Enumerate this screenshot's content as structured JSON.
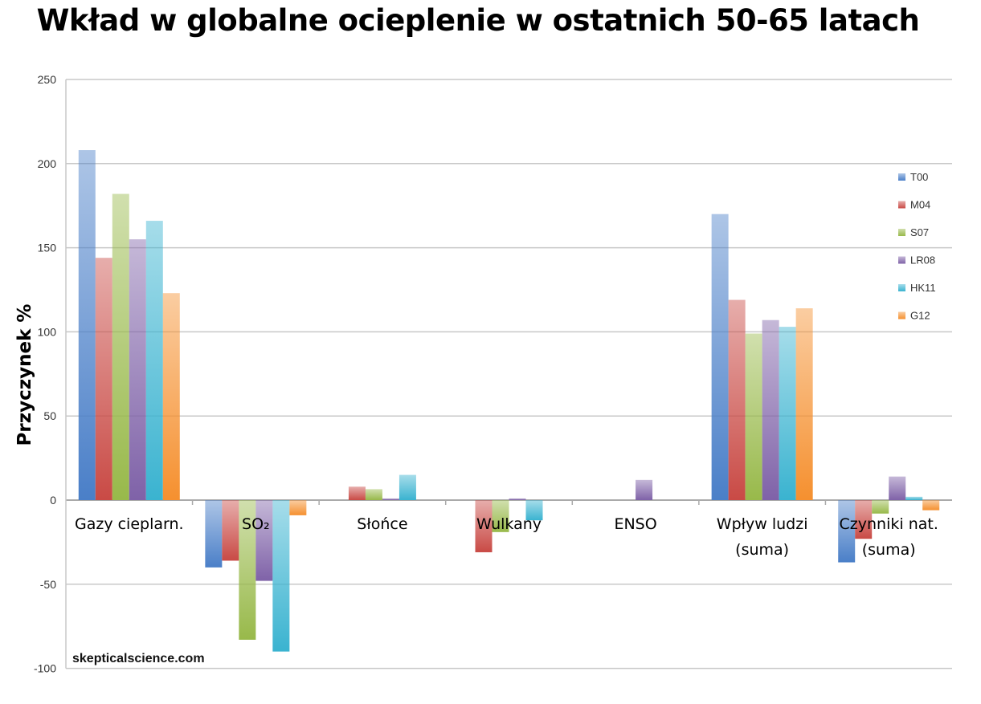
{
  "chart_data": {
    "type": "bar",
    "title": "Wkład w globalne ocieplenie w ostatnich 50-65 latach",
    "xlabel": "",
    "ylabel": "Przyczynek %",
    "ylim": [
      -100,
      250
    ],
    "yticks": [
      250,
      200,
      150,
      100,
      50,
      0,
      -50,
      -100
    ],
    "grid": true,
    "legend_position": "right",
    "watermark": "skepticalscience.com",
    "categories": [
      [
        "Gazy cieplarn."
      ],
      [
        "SO₂"
      ],
      [
        "Słońce"
      ],
      [
        "Wulkany"
      ],
      [
        "ENSO"
      ],
      [
        "Wpływ ludzi",
        "(suma)"
      ],
      [
        "Czynniki nat.",
        "(suma)"
      ]
    ],
    "series": [
      {
        "name": "T00",
        "color": "#4a7fc8",
        "values": [
          208,
          -40,
          0,
          0,
          0,
          170,
          -37
        ]
      },
      {
        "name": "M04",
        "color": "#c94a45",
        "values": [
          144,
          -36,
          8,
          -31,
          0,
          119,
          -23
        ]
      },
      {
        "name": "S07",
        "color": "#98b94a",
        "values": [
          182,
          -83,
          6.5,
          -19,
          0,
          99,
          -8
        ]
      },
      {
        "name": "LR08",
        "color": "#7f62a8",
        "values": [
          155,
          -48,
          1,
          1,
          12,
          107,
          14
        ]
      },
      {
        "name": "HK11",
        "color": "#3ab3d0",
        "values": [
          166,
          -90,
          15,
          -12,
          0,
          103,
          2
        ]
      },
      {
        "name": "G12",
        "color": "#f5902f",
        "values": [
          123,
          -9,
          0,
          0,
          0,
          114,
          -6
        ]
      }
    ]
  }
}
